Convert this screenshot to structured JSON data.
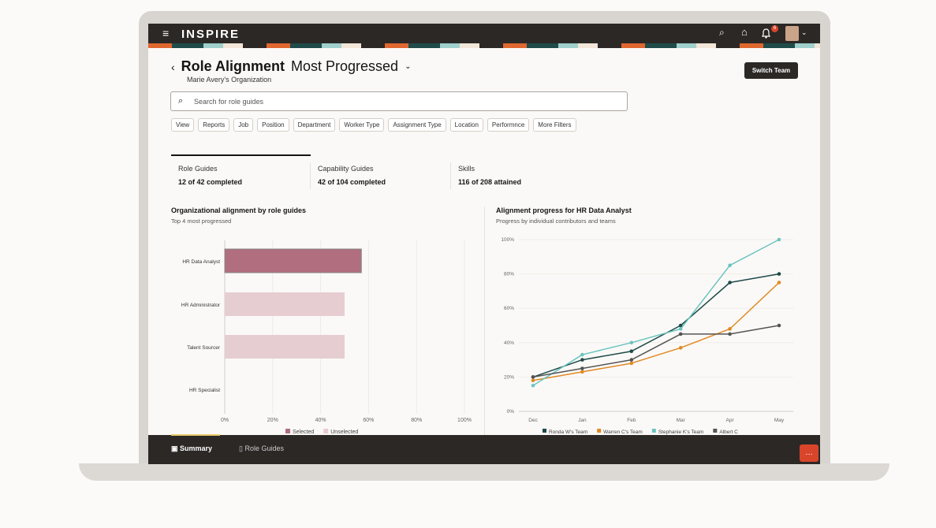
{
  "app": {
    "name": "INSPIRE",
    "notification_count": "6"
  },
  "header": {
    "title": "Role Alignment",
    "view": "Most Progressed",
    "subtitle": "Marie Avery's Organization",
    "switch_team": "Switch Team"
  },
  "search": {
    "placeholder": "Search for role guides"
  },
  "filters": [
    "View",
    "Reports",
    "Job",
    "Position",
    "Department",
    "Worker Type",
    "Assignment Type",
    "Location",
    "Performnce",
    "More Filters"
  ],
  "stats": [
    {
      "label": "Role Guides",
      "value": "12 of 42 completed"
    },
    {
      "label": "Capability Guides",
      "value": "42 of 104 completed"
    },
    {
      "label": "Skills",
      "value": "116 of 208 attained"
    }
  ],
  "bottom_nav": [
    {
      "label": "Summary",
      "icon": "presentation-icon"
    },
    {
      "label": "Role Guides",
      "icon": "book-icon"
    }
  ],
  "colors": {
    "selected": "#b06e7e",
    "unselected": "#e6cdd2",
    "ronda": "#1d4a48",
    "warren": "#e08a24",
    "stephanie": "#6cc4c0",
    "albert": "#555555"
  },
  "chart_data": [
    {
      "type": "bar",
      "title": "Organizational alignment by role guides",
      "subtitle": "Top 4 most progressed",
      "categories": [
        "HR Data Analyst",
        "HR Administrator",
        "Talent Sourcer",
        "HR Specialist"
      ],
      "values": [
        57,
        50,
        50,
        0
      ],
      "selected": "HR Data Analyst",
      "xlim": [
        0,
        100
      ],
      "xticks": [
        "0%",
        "20%",
        "40%",
        "60%",
        "80%",
        "100%"
      ],
      "legend": [
        "Selected",
        "Unselected"
      ],
      "legend_position": "bottom"
    },
    {
      "type": "line",
      "title": "Alignment progress for HR Data Analyst",
      "subtitle": "Progress by individual contributors and teams",
      "x": [
        "Dec",
        "Jan",
        "Feb",
        "Mar",
        "Apr",
        "May"
      ],
      "ylim": [
        0,
        100
      ],
      "yticks": [
        "0%",
        "20%",
        "40%",
        "60%",
        "80%",
        "100%"
      ],
      "series": [
        {
          "name": "Ronda W's Team",
          "values": [
            20,
            30,
            35,
            50,
            75,
            80
          ]
        },
        {
          "name": "Warren C's Team",
          "values": [
            18,
            23,
            28,
            37,
            48,
            75
          ]
        },
        {
          "name": "Stephanie K's Team",
          "values": [
            15,
            33,
            40,
            48,
            85,
            100
          ]
        },
        {
          "name": "Albert C",
          "values": [
            20,
            25,
            30,
            45,
            45,
            50
          ]
        }
      ],
      "legend_position": "bottom"
    }
  ]
}
